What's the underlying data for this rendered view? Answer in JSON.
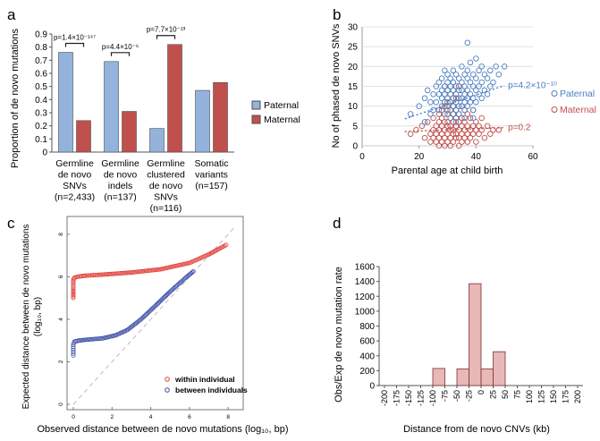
{
  "colors": {
    "paternal_fill": "#93b3dd",
    "maternal_fill": "#c0504d",
    "paternal_point": "#4a7fc1",
    "maternal_point": "#c0504d",
    "within_point": "#e0403a",
    "between_point": "#3b4fa6",
    "cnv_fill": "#e8b8b8",
    "cnv_stroke": "#7a3030"
  },
  "chart_data": [
    {
      "panel": "a",
      "type": "bar",
      "ylabel": "Proportion of de novo mutations",
      "ylim": [
        0,
        0.9
      ],
      "yticks": [
        "0",
        "0.1",
        "0.2",
        "0.3",
        "0.4",
        "0.5",
        "0.6",
        "0.7",
        "0.8",
        "0.9"
      ],
      "categories": [
        [
          "Germline",
          "de novo",
          "SNVs",
          "(n=2,433)"
        ],
        [
          "Germline",
          "de novo",
          "indels",
          "(n=137)"
        ],
        [
          "Germline",
          "clustered",
          "de novo",
          "SNVs",
          "(n=116)"
        ],
        [
          "Somatic",
          "variants",
          "(n=157)"
        ]
      ],
      "series": [
        {
          "name": "Paternal",
          "values": [
            0.76,
            0.69,
            0.18,
            0.47
          ]
        },
        {
          "name": "Maternal",
          "values": [
            0.24,
            0.31,
            0.82,
            0.53
          ]
        }
      ],
      "annotations": [
        {
          "category": 0,
          "text": "p=1.4×10⁻¹⁴⁷"
        },
        {
          "category": 1,
          "text": "p=4.4×10⁻⁶"
        },
        {
          "category": 2,
          "text": "p=7.7×10⁻¹³"
        }
      ],
      "legend_position": "right"
    },
    {
      "panel": "b",
      "type": "scatter",
      "xlabel": "Parental age at child birth",
      "ylabel": "No of phased de novo SNVs",
      "xlim": [
        0,
        60
      ],
      "ylim": [
        0,
        30
      ],
      "xticks": [
        "0",
        "20",
        "40",
        "60"
      ],
      "yticks": [
        "0",
        "5",
        "10",
        "15",
        "20",
        "25",
        "30"
      ],
      "series": [
        {
          "name": "Paternal",
          "p_value": "p=4.2×10⁻¹⁰",
          "trend": {
            "x": [
              15,
              50
            ],
            "y": [
              6.8,
              15.2
            ]
          },
          "points": [
            [
              17,
              8
            ],
            [
              20,
              10
            ],
            [
              22,
              12
            ],
            [
              23,
              14
            ],
            [
              24,
              11
            ],
            [
              25,
              13
            ],
            [
              25,
              9
            ],
            [
              26,
              15
            ],
            [
              26,
              11
            ],
            [
              27,
              16
            ],
            [
              27,
              13
            ],
            [
              27,
              9
            ],
            [
              28,
              17
            ],
            [
              28,
              14
            ],
            [
              28,
              12
            ],
            [
              28,
              10
            ],
            [
              29,
              19
            ],
            [
              29,
              15
            ],
            [
              29,
              13
            ],
            [
              29,
              11
            ],
            [
              29,
              8
            ],
            [
              30,
              18
            ],
            [
              30,
              16
            ],
            [
              30,
              14
            ],
            [
              30,
              12
            ],
            [
              30,
              10
            ],
            [
              30,
              9
            ],
            [
              31,
              17
            ],
            [
              31,
              15
            ],
            [
              31,
              13
            ],
            [
              31,
              11
            ],
            [
              31,
              7
            ],
            [
              32,
              19
            ],
            [
              32,
              16
            ],
            [
              32,
              14
            ],
            [
              32,
              12
            ],
            [
              32,
              10
            ],
            [
              32,
              8
            ],
            [
              33,
              18
            ],
            [
              33,
              15
            ],
            [
              33,
              13
            ],
            [
              33,
              11
            ],
            [
              33,
              9
            ],
            [
              34,
              17
            ],
            [
              34,
              14
            ],
            [
              34,
              12
            ],
            [
              34,
              10
            ],
            [
              34,
              8
            ],
            [
              35,
              20
            ],
            [
              35,
              16
            ],
            [
              35,
              14
            ],
            [
              35,
              12
            ],
            [
              35,
              10
            ],
            [
              36,
              18
            ],
            [
              36,
              15
            ],
            [
              36,
              13
            ],
            [
              36,
              11
            ],
            [
              36,
              9
            ],
            [
              37,
              26
            ],
            [
              37,
              19
            ],
            [
              37,
              17
            ],
            [
              37,
              14
            ],
            [
              37,
              12
            ],
            [
              37,
              10
            ],
            [
              38,
              21
            ],
            [
              38,
              16
            ],
            [
              38,
              13
            ],
            [
              38,
              11
            ],
            [
              39,
              18
            ],
            [
              39,
              15
            ],
            [
              39,
              12
            ],
            [
              39,
              9
            ],
            [
              40,
              22
            ],
            [
              40,
              17
            ],
            [
              40,
              14
            ],
            [
              40,
              11
            ],
            [
              41,
              19
            ],
            [
              41,
              15
            ],
            [
              41,
              13
            ],
            [
              42,
              20
            ],
            [
              42,
              16
            ],
            [
              42,
              12
            ],
            [
              43,
              18
            ],
            [
              43,
              14
            ],
            [
              44,
              17
            ],
            [
              44,
              13
            ],
            [
              45,
              19
            ],
            [
              45,
              15
            ],
            [
              46,
              16
            ],
            [
              47,
              20
            ],
            [
              48,
              18
            ],
            [
              50,
              20
            ],
            [
              22,
              6
            ],
            [
              24,
              8
            ],
            [
              33,
              6
            ],
            [
              36,
              7
            ],
            [
              39,
              7
            ]
          ]
        },
        {
          "name": "Maternal",
          "p_value": "p=0.2",
          "trend": {
            "x": [
              15,
              50
            ],
            "y": [
              3.6,
              4.6
            ]
          },
          "points": [
            [
              17,
              3
            ],
            [
              19,
              4
            ],
            [
              21,
              5
            ],
            [
              22,
              2
            ],
            [
              23,
              6
            ],
            [
              24,
              3
            ],
            [
              24,
              1
            ],
            [
              25,
              7
            ],
            [
              25,
              4
            ],
            [
              25,
              2
            ],
            [
              26,
              5
            ],
            [
              26,
              3
            ],
            [
              26,
              1
            ],
            [
              27,
              8
            ],
            [
              27,
              6
            ],
            [
              27,
              4
            ],
            [
              27,
              2
            ],
            [
              27,
              0
            ],
            [
              28,
              9
            ],
            [
              28,
              7
            ],
            [
              28,
              5
            ],
            [
              28,
              3
            ],
            [
              28,
              1
            ],
            [
              29,
              15
            ],
            [
              29,
              10
            ],
            [
              29,
              6
            ],
            [
              29,
              4
            ],
            [
              29,
              2
            ],
            [
              29,
              0
            ],
            [
              30,
              11
            ],
            [
              30,
              8
            ],
            [
              30,
              6
            ],
            [
              30,
              5
            ],
            [
              30,
              3
            ],
            [
              30,
              1
            ],
            [
              31,
              9
            ],
            [
              31,
              7
            ],
            [
              31,
              5
            ],
            [
              31,
              4
            ],
            [
              31,
              2
            ],
            [
              31,
              0
            ],
            [
              32,
              10
            ],
            [
              32,
              8
            ],
            [
              32,
              6
            ],
            [
              32,
              4
            ],
            [
              32,
              3
            ],
            [
              32,
              1
            ],
            [
              33,
              12
            ],
            [
              33,
              9
            ],
            [
              33,
              7
            ],
            [
              33,
              5
            ],
            [
              33,
              3
            ],
            [
              33,
              2
            ],
            [
              34,
              8
            ],
            [
              34,
              6
            ],
            [
              34,
              4
            ],
            [
              34,
              2
            ],
            [
              34,
              0
            ],
            [
              35,
              10
            ],
            [
              35,
              7
            ],
            [
              35,
              5
            ],
            [
              35,
              3
            ],
            [
              35,
              1
            ],
            [
              36,
              9
            ],
            [
              36,
              6
            ],
            [
              36,
              4
            ],
            [
              36,
              2
            ],
            [
              37,
              8
            ],
            [
              37,
              5
            ],
            [
              37,
              3
            ],
            [
              37,
              1
            ],
            [
              38,
              7
            ],
            [
              38,
              4
            ],
            [
              38,
              2
            ],
            [
              39,
              9
            ],
            [
              39,
              5
            ],
            [
              39,
              3
            ],
            [
              40,
              6
            ],
            [
              40,
              4
            ],
            [
              40,
              1
            ],
            [
              41,
              5
            ],
            [
              41,
              3
            ],
            [
              42,
              7
            ],
            [
              42,
              4
            ],
            [
              43,
              2
            ],
            [
              44,
              5
            ],
            [
              45,
              3
            ],
            [
              46,
              4
            ],
            [
              48,
              4
            ],
            [
              30,
              14
            ],
            [
              34,
              15
            ],
            [
              36,
              13
            ]
          ]
        }
      ]
    },
    {
      "panel": "c",
      "type": "scatter",
      "xlabel": "Observed distance between de novo mutations (log₁₀, bp)",
      "ylabel_lines": [
        "Expected distance between de novo mutations",
        "(log₁₀, bp)"
      ],
      "xlim": [
        0,
        8.5
      ],
      "ylim": [
        0,
        8.5
      ],
      "xticks": [
        "0",
        "2",
        "4",
        "6",
        "8"
      ],
      "yticks": [
        "0",
        "2",
        "4",
        "6",
        "8"
      ],
      "reference_line": "y=x",
      "legend_position": "bottom-right",
      "series": [
        {
          "name": "within individual",
          "curve": [
            [
              0,
              5.0
            ],
            [
              0,
              5.4
            ],
            [
              0,
              5.7
            ],
            [
              0,
              5.85
            ],
            [
              0.05,
              5.95
            ],
            [
              0.2,
              6.0
            ],
            [
              0.6,
              6.05
            ],
            [
              1.5,
              6.1
            ],
            [
              3,
              6.2
            ],
            [
              4.5,
              6.35
            ],
            [
              5.5,
              6.55
            ],
            [
              6,
              6.65
            ],
            [
              6.5,
              6.85
            ],
            [
              7,
              7.05
            ],
            [
              7.5,
              7.3
            ],
            [
              7.9,
              7.5
            ]
          ]
        },
        {
          "name": "between individuals",
          "curve": [
            [
              0,
              2.3
            ],
            [
              0,
              2.55
            ],
            [
              0,
              2.8
            ],
            [
              0.05,
              2.95
            ],
            [
              0.3,
              3.0
            ],
            [
              0.8,
              3.05
            ],
            [
              1.5,
              3.1
            ],
            [
              2.2,
              3.25
            ],
            [
              2.8,
              3.5
            ],
            [
              3.5,
              4.0
            ],
            [
              4.2,
              4.6
            ],
            [
              5,
              5.3
            ],
            [
              5.8,
              5.95
            ],
            [
              6.2,
              6.25
            ]
          ]
        }
      ]
    },
    {
      "panel": "d",
      "type": "bar",
      "xlabel": "Distance from de novo CNVs (kb)",
      "ylabel": "Obs/Exp de novo mutation rate",
      "ylim": [
        0,
        1600
      ],
      "yticks": [
        "0",
        "200",
        "400",
        "600",
        "800",
        "1000",
        "1200",
        "1400",
        "1600"
      ],
      "xticks": [
        "-200",
        "-175",
        "-150",
        "-125",
        "-100",
        "-75",
        "-50",
        "-25",
        "0",
        "25",
        "50",
        "75",
        "100",
        "125",
        "150",
        "175",
        "200"
      ],
      "bins": [
        {
          "from": -100,
          "to": -75,
          "value": 230
        },
        {
          "from": -50,
          "to": -25,
          "value": 225
        },
        {
          "from": -25,
          "to": 0,
          "value": 1370
        },
        {
          "from": 0,
          "to": 25,
          "value": 225
        },
        {
          "from": 25,
          "to": 50,
          "value": 455
        }
      ]
    }
  ],
  "panel_labels": [
    "a",
    "b",
    "c",
    "d"
  ]
}
